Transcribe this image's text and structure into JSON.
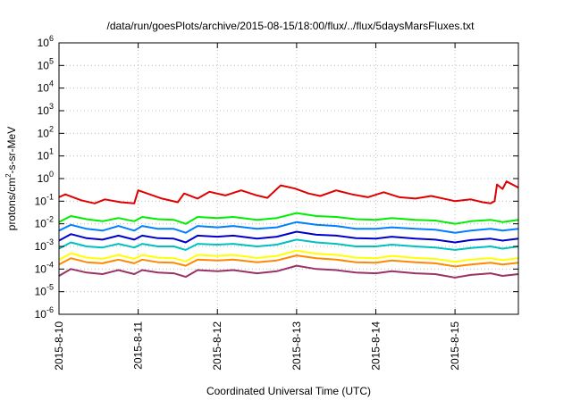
{
  "chart_data": {
    "type": "line",
    "title": "/data/run/goesPlots/archive/2015-08-15/18:00/flux/../flux/5daysMarsFluxes.txt",
    "xlabel": "Coordinated Universal Time (UTC)",
    "ylabel_parts": [
      "protons/cm",
      "2",
      "-s-sr-MeV"
    ],
    "yscale": "log",
    "ylim": [
      1e-06,
      1000000.0
    ],
    "y_ticks": [
      {
        "base": "10",
        "exp": "-6",
        "value": 1e-06
      },
      {
        "base": "10",
        "exp": "-5",
        "value": 1e-05
      },
      {
        "base": "10",
        "exp": "-4",
        "value": 0.0001
      },
      {
        "base": "10",
        "exp": "-3",
        "value": 0.001
      },
      {
        "base": "10",
        "exp": "-2",
        "value": 0.01
      },
      {
        "base": "10",
        "exp": "-1",
        "value": 0.1
      },
      {
        "base": "10",
        "exp": "0",
        "value": 1
      },
      {
        "base": "10",
        "exp": "1",
        "value": 10
      },
      {
        "base": "10",
        "exp": "2",
        "value": 100
      },
      {
        "base": "10",
        "exp": "3",
        "value": 1000
      },
      {
        "base": "10",
        "exp": "4",
        "value": 10000
      },
      {
        "base": "10",
        "exp": "5",
        "value": 100000
      },
      {
        "base": "10",
        "exp": "6",
        "value": 1000000
      }
    ],
    "x_tick_labels": [
      "2015-8-10",
      "2015-8-11",
      "2015-8-12",
      "2015-8-13",
      "2015-8-14",
      "2015-8-15"
    ],
    "xlim_days": [
      0,
      5.8
    ],
    "grid": true,
    "legend": "none",
    "series": [
      {
        "color": "#e00000",
        "points": [
          [
            0.0,
            0.15
          ],
          [
            0.08,
            0.2
          ],
          [
            0.28,
            0.11
          ],
          [
            0.45,
            0.08
          ],
          [
            0.58,
            0.12
          ],
          [
            0.78,
            0.09
          ],
          [
            0.95,
            0.08
          ],
          [
            1.0,
            0.3
          ],
          [
            1.3,
            0.13
          ],
          [
            1.5,
            0.09
          ],
          [
            1.58,
            0.22
          ],
          [
            1.75,
            0.13
          ],
          [
            1.9,
            0.26
          ],
          [
            2.1,
            0.18
          ],
          [
            2.3,
            0.3
          ],
          [
            2.5,
            0.18
          ],
          [
            2.63,
            0.14
          ],
          [
            2.8,
            0.5
          ],
          [
            2.98,
            0.36
          ],
          [
            3.15,
            0.22
          ],
          [
            3.3,
            0.17
          ],
          [
            3.5,
            0.3
          ],
          [
            3.7,
            0.2
          ],
          [
            3.9,
            0.15
          ],
          [
            4.1,
            0.25
          ],
          [
            4.3,
            0.15
          ],
          [
            4.5,
            0.13
          ],
          [
            4.7,
            0.17
          ],
          [
            4.9,
            0.12
          ],
          [
            5.0,
            0.1
          ],
          [
            5.2,
            0.12
          ],
          [
            5.35,
            0.09
          ],
          [
            5.45,
            0.08
          ],
          [
            5.5,
            0.1
          ],
          [
            5.53,
            0.55
          ],
          [
            5.6,
            0.35
          ],
          [
            5.65,
            0.75
          ],
          [
            5.8,
            0.4
          ]
        ]
      },
      {
        "color": "#00ee00",
        "points": [
          [
            0.0,
            0.012
          ],
          [
            0.15,
            0.022
          ],
          [
            0.35,
            0.016
          ],
          [
            0.55,
            0.013
          ],
          [
            0.75,
            0.018
          ],
          [
            0.95,
            0.013
          ],
          [
            1.05,
            0.02
          ],
          [
            1.25,
            0.016
          ],
          [
            1.45,
            0.015
          ],
          [
            1.6,
            0.01
          ],
          [
            1.75,
            0.02
          ],
          [
            2.0,
            0.018
          ],
          [
            2.2,
            0.02
          ],
          [
            2.5,
            0.015
          ],
          [
            2.75,
            0.018
          ],
          [
            3.0,
            0.03
          ],
          [
            3.25,
            0.022
          ],
          [
            3.5,
            0.02
          ],
          [
            3.75,
            0.016
          ],
          [
            4.0,
            0.015
          ],
          [
            4.2,
            0.018
          ],
          [
            4.5,
            0.015
          ],
          [
            4.75,
            0.014
          ],
          [
            5.0,
            0.01
          ],
          [
            5.2,
            0.013
          ],
          [
            5.45,
            0.015
          ],
          [
            5.6,
            0.012
          ],
          [
            5.8,
            0.015
          ]
        ]
      },
      {
        "color": "#0080ff",
        "points": [
          [
            0.0,
            0.005
          ],
          [
            0.15,
            0.009
          ],
          [
            0.35,
            0.006
          ],
          [
            0.55,
            0.005
          ],
          [
            0.75,
            0.008
          ],
          [
            0.95,
            0.005
          ],
          [
            1.05,
            0.008
          ],
          [
            1.25,
            0.006
          ],
          [
            1.45,
            0.006
          ],
          [
            1.6,
            0.004
          ],
          [
            1.75,
            0.008
          ],
          [
            2.0,
            0.007
          ],
          [
            2.2,
            0.008
          ],
          [
            2.5,
            0.006
          ],
          [
            2.75,
            0.007
          ],
          [
            3.0,
            0.012
          ],
          [
            3.25,
            0.009
          ],
          [
            3.5,
            0.008
          ],
          [
            3.75,
            0.006
          ],
          [
            4.0,
            0.006
          ],
          [
            4.2,
            0.007
          ],
          [
            4.5,
            0.006
          ],
          [
            4.75,
            0.0055
          ],
          [
            5.0,
            0.004
          ],
          [
            5.2,
            0.005
          ],
          [
            5.45,
            0.006
          ],
          [
            5.6,
            0.005
          ],
          [
            5.8,
            0.006
          ]
        ]
      },
      {
        "color": "#0000cc",
        "points": [
          [
            0.0,
            0.0018
          ],
          [
            0.15,
            0.0035
          ],
          [
            0.35,
            0.0023
          ],
          [
            0.55,
            0.002
          ],
          [
            0.75,
            0.003
          ],
          [
            0.95,
            0.002
          ],
          [
            1.05,
            0.003
          ],
          [
            1.25,
            0.0023
          ],
          [
            1.45,
            0.0022
          ],
          [
            1.6,
            0.0015
          ],
          [
            1.75,
            0.003
          ],
          [
            2.0,
            0.0027
          ],
          [
            2.2,
            0.003
          ],
          [
            2.5,
            0.0022
          ],
          [
            2.75,
            0.0027
          ],
          [
            3.0,
            0.0045
          ],
          [
            3.25,
            0.0033
          ],
          [
            3.5,
            0.003
          ],
          [
            3.75,
            0.0023
          ],
          [
            4.0,
            0.0022
          ],
          [
            4.2,
            0.0027
          ],
          [
            4.5,
            0.0022
          ],
          [
            4.75,
            0.002
          ],
          [
            5.0,
            0.0015
          ],
          [
            5.2,
            0.0019
          ],
          [
            5.45,
            0.0022
          ],
          [
            5.6,
            0.0018
          ],
          [
            5.8,
            0.0022
          ]
        ]
      },
      {
        "color": "#00c0c0",
        "points": [
          [
            0.0,
            0.0008
          ],
          [
            0.15,
            0.0015
          ],
          [
            0.35,
            0.001
          ],
          [
            0.55,
            0.0009
          ],
          [
            0.75,
            0.0013
          ],
          [
            0.95,
            0.0009
          ],
          [
            1.05,
            0.0013
          ],
          [
            1.25,
            0.001
          ],
          [
            1.45,
            0.001
          ],
          [
            1.6,
            0.0007
          ],
          [
            1.75,
            0.0013
          ],
          [
            2.0,
            0.0012
          ],
          [
            2.2,
            0.0013
          ],
          [
            2.5,
            0.001
          ],
          [
            2.75,
            0.0012
          ],
          [
            3.0,
            0.002
          ],
          [
            3.25,
            0.0015
          ],
          [
            3.5,
            0.0013
          ],
          [
            3.75,
            0.001
          ],
          [
            4.0,
            0.001
          ],
          [
            4.2,
            0.0012
          ],
          [
            4.5,
            0.001
          ],
          [
            4.75,
            0.0009
          ],
          [
            5.0,
            0.0007
          ],
          [
            5.2,
            0.00085
          ],
          [
            5.45,
            0.001
          ],
          [
            5.6,
            0.0008
          ],
          [
            5.8,
            0.001
          ]
        ]
      },
      {
        "color": "#ffff00",
        "points": [
          [
            0.0,
            0.00025
          ],
          [
            0.15,
            0.0005
          ],
          [
            0.35,
            0.00032
          ],
          [
            0.55,
            0.00028
          ],
          [
            0.75,
            0.00042
          ],
          [
            0.95,
            0.00028
          ],
          [
            1.05,
            0.00042
          ],
          [
            1.25,
            0.00032
          ],
          [
            1.45,
            0.0003
          ],
          [
            1.6,
            0.00022
          ],
          [
            1.75,
            0.00042
          ],
          [
            2.0,
            0.00038
          ],
          [
            2.2,
            0.00042
          ],
          [
            2.5,
            0.00031
          ],
          [
            2.75,
            0.00038
          ],
          [
            3.0,
            0.00065
          ],
          [
            3.25,
            0.00048
          ],
          [
            3.5,
            0.00042
          ],
          [
            3.75,
            0.00032
          ],
          [
            4.0,
            0.0003
          ],
          [
            4.2,
            0.00038
          ],
          [
            4.5,
            0.00031
          ],
          [
            4.75,
            0.00028
          ],
          [
            5.0,
            0.00021
          ],
          [
            5.2,
            0.00026
          ],
          [
            5.45,
            0.0003
          ],
          [
            5.6,
            0.00025
          ],
          [
            5.8,
            0.0003
          ]
        ]
      },
      {
        "color": "#ff8800",
        "points": [
          [
            0.0,
            0.00016
          ],
          [
            0.15,
            0.0003
          ],
          [
            0.35,
            0.0002
          ],
          [
            0.55,
            0.00018
          ],
          [
            0.75,
            0.00026
          ],
          [
            0.95,
            0.00018
          ],
          [
            1.05,
            0.00026
          ],
          [
            1.25,
            0.0002
          ],
          [
            1.45,
            0.00019
          ],
          [
            1.6,
            0.00014
          ],
          [
            1.75,
            0.00026
          ],
          [
            2.0,
            0.00024
          ],
          [
            2.2,
            0.00026
          ],
          [
            2.5,
            0.0002
          ],
          [
            2.75,
            0.00024
          ],
          [
            3.0,
            0.0004
          ],
          [
            3.25,
            0.0003
          ],
          [
            3.5,
            0.00026
          ],
          [
            3.75,
            0.0002
          ],
          [
            4.0,
            0.00019
          ],
          [
            4.2,
            0.00024
          ],
          [
            4.5,
            0.0002
          ],
          [
            4.75,
            0.00018
          ],
          [
            5.0,
            0.00013
          ],
          [
            5.2,
            0.00016
          ],
          [
            5.45,
            0.00019
          ],
          [
            5.6,
            0.00016
          ],
          [
            5.8,
            0.00019
          ]
        ]
      },
      {
        "color": "#993366",
        "points": [
          [
            0.0,
            5e-05
          ],
          [
            0.15,
            0.0001
          ],
          [
            0.35,
            7e-05
          ],
          [
            0.55,
            6e-05
          ],
          [
            0.75,
            9e-05
          ],
          [
            0.95,
            6e-05
          ],
          [
            1.05,
            9e-05
          ],
          [
            1.25,
            7e-05
          ],
          [
            1.45,
            6.5e-05
          ],
          [
            1.6,
            4.5e-05
          ],
          [
            1.75,
            9e-05
          ],
          [
            2.0,
            8e-05
          ],
          [
            2.2,
            9e-05
          ],
          [
            2.5,
            6.5e-05
          ],
          [
            2.75,
            8e-05
          ],
          [
            3.0,
            0.00014
          ],
          [
            3.25,
            0.0001
          ],
          [
            3.5,
            9e-05
          ],
          [
            3.75,
            7e-05
          ],
          [
            4.0,
            6.5e-05
          ],
          [
            4.2,
            8e-05
          ],
          [
            4.5,
            6.5e-05
          ],
          [
            4.75,
            6e-05
          ],
          [
            5.0,
            4.2e-05
          ],
          [
            5.2,
            5.5e-05
          ],
          [
            5.45,
            6.5e-05
          ],
          [
            5.6,
            5e-05
          ],
          [
            5.8,
            6e-05
          ]
        ]
      }
    ]
  }
}
